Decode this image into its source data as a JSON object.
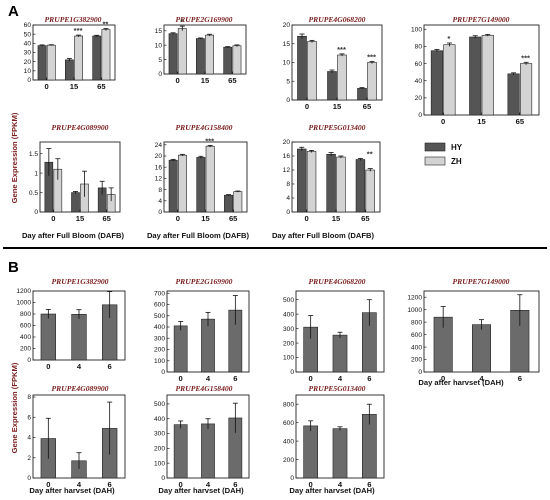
{
  "figure": {
    "panel_a_letter": "A",
    "panel_b_letter": "B",
    "panel_a_ylabel": "Gene Expression (FPKM)",
    "panel_b_ylabel": "Gene Expression (FPKM)",
    "panel_a_xlabel": "Day after Full Bloom (DAFB)",
    "panel_b_xlabel": "Day after harvset (DAH)",
    "legend": [
      {
        "label": "HY",
        "color": "#555555"
      },
      {
        "label": "ZH",
        "color": "#d3d3d3"
      }
    ],
    "colors": {
      "hy": "#555555",
      "zh": "#d3d3d3",
      "b_bar": "#6b6b6b",
      "divider": "#000000"
    }
  },
  "chart_data": [
    {
      "panel": "A",
      "type": "bar",
      "title": "PRUPE1G382900",
      "categories": [
        "0",
        "15",
        "65"
      ],
      "series": [
        {
          "name": "HY",
          "values": [
            37.5,
            22,
            48
          ],
          "errors": [
            0.8,
            1.5,
            0.8
          ]
        },
        {
          "name": "ZH",
          "values": [
            38,
            48,
            55
          ],
          "errors": [
            0.5,
            1.0,
            1.2
          ]
        }
      ],
      "significance": [
        "",
        "***",
        "**"
      ],
      "ylim": [
        0,
        60
      ],
      "yticks": [
        0,
        10,
        20,
        30,
        40,
        50,
        60
      ]
    },
    {
      "panel": "A",
      "type": "bar",
      "title": "PRUPE2G169900",
      "categories": [
        "0",
        "15",
        "65"
      ],
      "series": [
        {
          "name": "HY",
          "values": [
            14,
            12.3,
            9.3
          ],
          "errors": [
            0.3,
            0.2,
            0.2
          ]
        },
        {
          "name": "ZH",
          "values": [
            15.8,
            13.5,
            9.8
          ],
          "errors": [
            0.8,
            0.3,
            0.3
          ]
        }
      ],
      "significance": [
        "*",
        "",
        ""
      ],
      "ylim": [
        0,
        17
      ],
      "yticks": [
        0,
        5,
        10,
        15
      ]
    },
    {
      "panel": "A",
      "type": "bar",
      "title": "PRUPE4G068200",
      "categories": [
        "0",
        "15",
        "65"
      ],
      "series": [
        {
          "name": "HY",
          "values": [
            17,
            7.6,
            3.1
          ],
          "errors": [
            0.6,
            0.4,
            0.2
          ]
        },
        {
          "name": "ZH",
          "values": [
            15.6,
            12,
            10
          ],
          "errors": [
            0.3,
            0.3,
            0.3
          ]
        }
      ],
      "significance": [
        "",
        "***",
        "***"
      ],
      "ylim": [
        0,
        20
      ],
      "yticks": [
        0,
        5,
        10,
        15,
        20
      ]
    },
    {
      "panel": "A",
      "type": "bar",
      "title": "PRUPE7G149000",
      "categories": [
        "0",
        "15",
        "65"
      ],
      "series": [
        {
          "name": "HY",
          "values": [
            75,
            91,
            48
          ],
          "errors": [
            1.5,
            1.5,
            1.2
          ]
        },
        {
          "name": "ZH",
          "values": [
            82,
            93,
            60
          ],
          "errors": [
            2.0,
            1.0,
            1.5
          ]
        }
      ],
      "significance": [
        "*",
        "",
        "***"
      ],
      "ylim": [
        0,
        105
      ],
      "yticks": [
        0,
        20,
        40,
        60,
        80,
        100
      ]
    },
    {
      "panel": "A",
      "type": "bar",
      "title": "PRUPE4G089900",
      "categories": [
        "0",
        "15",
        "65"
      ],
      "series": [
        {
          "name": "HY",
          "values": [
            1.28,
            0.5,
            0.62
          ],
          "errors": [
            0.35,
            0.03,
            0.17
          ]
        },
        {
          "name": "ZH",
          "values": [
            1.1,
            0.72,
            0.45
          ],
          "errors": [
            0.27,
            0.33,
            0.17
          ]
        }
      ],
      "significance": [
        "",
        "",
        ""
      ],
      "ylim": [
        0,
        1.8
      ],
      "yticks": [
        0,
        0.5,
        1,
        1.5
      ]
    },
    {
      "panel": "A",
      "type": "bar",
      "title": "PRUPE4G158400",
      "categories": [
        "0",
        "15",
        "65"
      ],
      "series": [
        {
          "name": "HY",
          "values": [
            18.5,
            19.5,
            6
          ],
          "errors": [
            0.3,
            0.4,
            0.2
          ]
        },
        {
          "name": "ZH",
          "values": [
            20.3,
            23.5,
            7.3
          ],
          "errors": [
            0.3,
            0.3,
            0.2
          ]
        }
      ],
      "significance": [
        "",
        "***",
        ""
      ],
      "ylim": [
        0,
        25
      ],
      "yticks": [
        0,
        4,
        8,
        12,
        16,
        20,
        24
      ]
    },
    {
      "panel": "A",
      "type": "bar",
      "title": "PRUPE5G013400",
      "categories": [
        "0",
        "15",
        "65"
      ],
      "series": [
        {
          "name": "HY",
          "values": [
            18,
            16.5,
            15
          ],
          "errors": [
            0.5,
            0.5,
            0.3
          ]
        },
        {
          "name": "ZH",
          "values": [
            17.3,
            15.7,
            12
          ],
          "errors": [
            0.3,
            0.3,
            0.4
          ]
        }
      ],
      "significance": [
        "",
        "",
        "**"
      ],
      "ylim": [
        0,
        20
      ],
      "yticks": [
        0,
        4,
        8,
        12,
        16,
        20
      ]
    },
    {
      "panel": "B",
      "type": "bar",
      "title": "PRUPE1G382900",
      "categories": [
        "0",
        "4",
        "6"
      ],
      "series": [
        {
          "values": [
            800,
            795,
            960
          ],
          "errors": [
            80,
            80,
            230
          ]
        }
      ],
      "ylim": [
        0,
        1200
      ],
      "yticks": [
        0,
        200,
        400,
        600,
        800,
        1000,
        1200
      ]
    },
    {
      "panel": "B",
      "type": "bar",
      "title": "PRUPE2G169900",
      "categories": [
        "0",
        "4",
        "6"
      ],
      "series": [
        {
          "values": [
            410,
            470,
            550
          ],
          "errors": [
            40,
            60,
            130
          ]
        }
      ],
      "ylim": [
        0,
        720
      ],
      "yticks": [
        0,
        100,
        200,
        300,
        400,
        500,
        600,
        700
      ]
    },
    {
      "panel": "B",
      "type": "bar",
      "title": "PRUPE4G068200",
      "categories": [
        "0",
        "4",
        "6"
      ],
      "series": [
        {
          "values": [
            310,
            255,
            410
          ],
          "errors": [
            80,
            20,
            90
          ]
        }
      ],
      "ylim": [
        0,
        560
      ],
      "yticks": [
        0,
        100,
        200,
        300,
        400,
        500
      ]
    },
    {
      "panel": "B",
      "type": "bar",
      "title": "PRUPE7G149000",
      "categories": [
        "0",
        "4",
        "6"
      ],
      "series": [
        {
          "values": [
            880,
            760,
            990
          ],
          "errors": [
            170,
            80,
            250
          ]
        }
      ],
      "ylim": [
        0,
        1300
      ],
      "yticks": [
        0,
        200,
        400,
        600,
        800,
        1000,
        1200
      ]
    },
    {
      "panel": "B",
      "type": "bar",
      "title": "PRUPE4G089900",
      "categories": [
        "0",
        "4",
        "6"
      ],
      "series": [
        {
          "values": [
            3.9,
            1.7,
            4.9
          ],
          "errors": [
            2.0,
            0.8,
            2.6
          ]
        }
      ],
      "ylim": [
        0,
        8.2
      ],
      "yticks": [
        0,
        2,
        4,
        6,
        8
      ]
    },
    {
      "panel": "B",
      "type": "bar",
      "title": "PRUPE4G158400",
      "categories": [
        "0",
        "4",
        "6"
      ],
      "series": [
        {
          "values": [
            360,
            365,
            405
          ],
          "errors": [
            25,
            35,
            100
          ]
        }
      ],
      "ylim": [
        0,
        560
      ],
      "yticks": [
        0,
        100,
        200,
        300,
        400,
        500
      ]
    },
    {
      "panel": "B",
      "type": "bar",
      "title": "PRUPE5G013400",
      "categories": [
        "0",
        "4",
        "6"
      ],
      "series": [
        {
          "values": [
            565,
            535,
            690
          ],
          "errors": [
            55,
            20,
            110
          ]
        }
      ],
      "ylim": [
        0,
        900
      ],
      "yticks": [
        0,
        200,
        400,
        600,
        800
      ]
    }
  ]
}
